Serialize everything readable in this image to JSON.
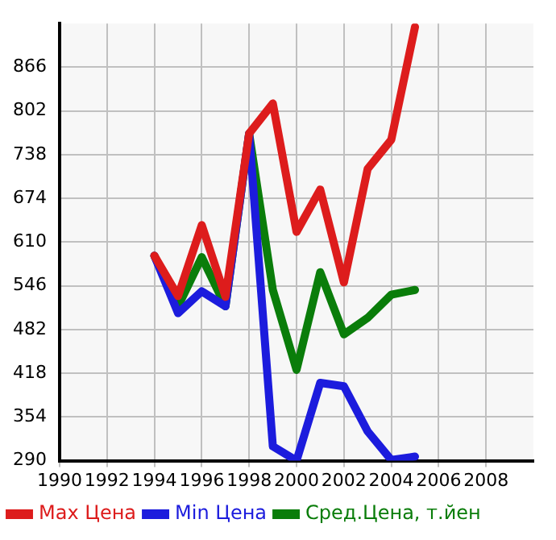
{
  "chart_data": {
    "type": "line",
    "x": [
      1994,
      1995,
      1996,
      1997,
      1998,
      1999,
      2000,
      2001,
      2002,
      2003,
      2004,
      2005
    ],
    "series": [
      {
        "name": "Max Цена",
        "color": "#dd1c1c",
        "values": [
          590,
          531,
          635,
          530,
          769,
          813,
          625,
          687,
          551,
          717,
          760,
          925
        ]
      },
      {
        "name": "Min Цена",
        "color": "#1c1cdd",
        "values": [
          590,
          506,
          538,
          516,
          769,
          311,
          290,
          404,
          399,
          333,
          291,
          296
        ]
      },
      {
        "name": "Сред.Цена, т.йен",
        "color": "#0a7d0a",
        "values": [
          590,
          516,
          588,
          516,
          769,
          540,
          423,
          566,
          475,
          499,
          533,
          540
        ]
      }
    ],
    "xlim": [
      1990,
      2010
    ],
    "xticks": [
      1990,
      1992,
      1994,
      1996,
      1998,
      2000,
      2002,
      2004,
      2006,
      2008
    ],
    "ylim": [
      290,
      930
    ],
    "yticks": [
      290,
      354,
      418,
      482,
      546,
      610,
      674,
      738,
      802,
      866
    ],
    "grid": true,
    "legend": "bottom",
    "marker": "none"
  }
}
